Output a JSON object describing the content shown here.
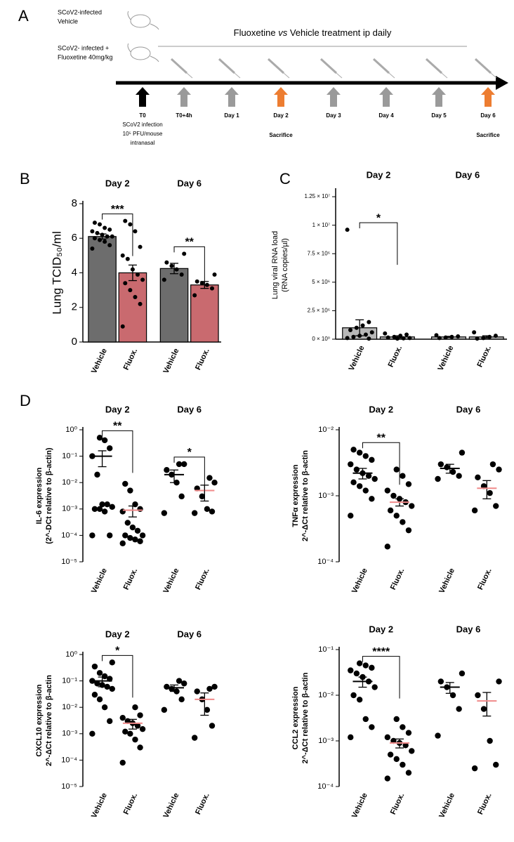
{
  "panel_a": {
    "panel": "A",
    "legend": [
      [
        "SCoV2-infected",
        "Vehicle"
      ],
      [
        "SCoV2- infected +",
        "Fluoxetine 40mg/kg"
      ]
    ],
    "banner": [
      "Fluoxetine ",
      "vs",
      " Vehicle treatment ip daily"
    ],
    "timepoints": [
      {
        "label": "T0",
        "color": "#000000"
      },
      {
        "label": "T0+4h",
        "color": "#9a9a9a"
      },
      {
        "label": "Day 1",
        "color": "#9a9a9a"
      },
      {
        "label": "Day 2",
        "color": "#ed7d31",
        "note": "Sacrifice"
      },
      {
        "label": "Day 3",
        "color": "#9a9a9a"
      },
      {
        "label": "Day 4",
        "color": "#9a9a9a"
      },
      {
        "label": "Day 5",
        "color": "#9a9a9a"
      },
      {
        "label": "Day 6",
        "color": "#ed7d31",
        "note": "Sacrifice"
      }
    ],
    "t0_notes": [
      "SCoV2 infection",
      "10⁵ PFU/mouse",
      "intranasal"
    ]
  },
  "chart_data": [
    {
      "type": "bar",
      "panel": "B",
      "ylabel": [
        "Lung TCID₅₀/ml"
      ],
      "groups": [
        "Day 2",
        "Day 6"
      ],
      "categories": [
        "Vehicle",
        "Fluox.",
        "Vehicle",
        "Fluox."
      ],
      "colors": [
        "#6d6d6d",
        "#c96a6f",
        "#6d6d6d",
        "#c96a6f"
      ],
      "means": [
        6.1,
        4.0,
        4.25,
        3.3
      ],
      "errors": [
        0.15,
        0.45,
        0.3,
        0.2
      ],
      "points": [
        [
          5.4,
          5.6,
          5.8,
          5.9,
          6.0,
          6.1,
          6.1,
          6.2,
          6.3,
          6.4,
          6.5,
          6.6,
          6.8,
          6.9
        ],
        [
          0.9,
          2.2,
          2.6,
          3.0,
          3.4,
          3.6,
          3.9,
          4.2,
          4.8,
          5.0,
          5.5,
          6.4,
          6.8,
          7.0
        ],
        [
          3.6,
          3.9,
          4.2,
          4.4,
          4.6,
          5.1
        ],
        [
          2.7,
          3.1,
          3.3,
          3.4,
          3.5,
          3.9
        ]
      ],
      "significance": [
        "***",
        "**"
      ],
      "log": false,
      "x_axis": true,
      "ylim": [
        0,
        8
      ],
      "yticks": [
        0,
        2,
        4,
        6,
        8
      ]
    },
    {
      "type": "bar",
      "panel": "C",
      "ylabel": [
        "Lung viral RNA load",
        "(RNA copies/µl)"
      ],
      "groups": [
        "Day 2",
        "Day 6"
      ],
      "categories": [
        "Vehicle",
        "Fluox.",
        "Vehicle",
        "Fluox."
      ],
      "colors": [
        "#b8b8b8",
        "#b8b8b8",
        "#b8b8b8",
        "#b8b8b8"
      ],
      "means": [
        1000000,
        200000,
        200000,
        200000
      ],
      "errors": [
        700000,
        100000,
        50000,
        100000
      ],
      "points": [
        [
          9600000,
          1500000,
          1200000,
          1000000,
          800000,
          600000,
          400000,
          300000,
          200000,
          100000,
          50000
        ],
        [
          500000,
          400000,
          300000,
          200000,
          150000,
          100000,
          80000,
          50000
        ],
        [
          350000,
          250000,
          200000,
          150000,
          100000
        ],
        [
          600000,
          300000,
          200000,
          100000,
          50000
        ]
      ],
      "significance": [
        "*",
        null
      ],
      "log": false,
      "x_axis": true,
      "ylim": [
        0,
        13000000
      ],
      "yticks": [
        {
          "value": 0,
          "label": "0 × 10⁰"
        },
        {
          "value": 2500000,
          "label": "2.5 × 10⁶"
        },
        {
          "value": 5000000,
          "label": "5 × 10⁶"
        },
        {
          "value": 7500000,
          "label": "7.5 × 10⁶"
        },
        {
          "value": 10000000,
          "label": "1 × 10⁷"
        },
        {
          "value": 12500000,
          "label": "1.25 × 10⁷"
        }
      ]
    },
    {
      "type": "dot",
      "panel": "D",
      "ylabel": [
        "IL-6 expression",
        "(2^-DCt relative to β-actin)"
      ],
      "groups": [
        "Day 2",
        "Day 6"
      ],
      "categories": [
        "Vehicle",
        "Fluox.",
        "Vehicle",
        "Fluox."
      ],
      "mean_colors": [
        "#000000",
        "#f08a8a",
        "#000000",
        "#f08a8a"
      ],
      "means": [
        0.1,
        0.0009,
        0.02,
        0.005
      ],
      "errors": [
        0.06,
        0.0004,
        0.01,
        0.003
      ],
      "points": [
        [
          0.0001,
          0.0001,
          0.0008,
          0.001,
          0.001,
          0.0012,
          0.0015,
          0.0015,
          0.02,
          0.1,
          0.2,
          0.4,
          0.5
        ],
        [
          5e-05,
          6e-05,
          7e-05,
          8e-05,
          0.0001,
          0.0001,
          0.00015,
          0.0002,
          0.0003,
          0.0008,
          0.001,
          0.0015,
          0.005,
          0.009
        ],
        [
          0.0007,
          0.003,
          0.01,
          0.02,
          0.03,
          0.05,
          0.05
        ],
        [
          0.0007,
          0.0008,
          0.001,
          0.003,
          0.006,
          0.01,
          0.015
        ]
      ],
      "significance": [
        "**",
        "*"
      ],
      "log": true,
      "x_axis": false,
      "ylim": [
        1e-05,
        1
      ],
      "yticks": [
        {
          "value": 1e-05,
          "label": "10⁻⁵"
        },
        {
          "value": 0.0001,
          "label": "10⁻⁴"
        },
        {
          "value": 0.001,
          "label": "10⁻³"
        },
        {
          "value": 0.01,
          "label": "10⁻²"
        },
        {
          "value": 0.1,
          "label": "10⁻¹"
        },
        {
          "value": 1,
          "label": "10⁰"
        }
      ]
    },
    {
      "type": "dot",
      "ylabel": [
        "TNFα expression",
        "2^-ΔCt relative to β-actin"
      ],
      "groups": [
        "Day 2",
        "Day 6"
      ],
      "categories": [
        "Vehicle",
        "Fluox.",
        "Vehicle",
        "Fluox."
      ],
      "mean_colors": [
        "#000000",
        "#f08a8a",
        "#000000",
        "#f08a8a"
      ],
      "means": [
        0.0022,
        0.0008,
        0.0026,
        0.0013
      ],
      "errors": [
        0.0004,
        0.0001,
        0.0004,
        0.0004
      ],
      "points": [
        [
          0.0005,
          0.0009,
          0.0012,
          0.0014,
          0.0016,
          0.0018,
          0.002,
          0.0022,
          0.0025,
          0.003,
          0.0035,
          0.004,
          0.0045,
          0.005
        ],
        [
          0.00017,
          0.0003,
          0.0004,
          0.0005,
          0.0006,
          0.0007,
          0.0008,
          0.0009,
          0.001,
          0.0012,
          0.0015,
          0.002,
          0.0025
        ],
        [
          0.0018,
          0.002,
          0.0023,
          0.0027,
          0.003,
          0.0045
        ],
        [
          0.0006,
          0.0007,
          0.0011,
          0.0014,
          0.0019,
          0.0025,
          0.003
        ]
      ],
      "significance": [
        "**",
        null
      ],
      "log": true,
      "x_axis": false,
      "ylim": [
        0.0001,
        0.01
      ],
      "yticks": [
        {
          "value": 0.0001,
          "label": "10⁻⁴"
        },
        {
          "value": 0.001,
          "label": "10⁻³"
        },
        {
          "value": 0.01,
          "label": "10⁻²"
        }
      ]
    },
    {
      "type": "dot",
      "ylabel": [
        "CXCL10 expression",
        "2^-ΔCt relative to β-actin"
      ],
      "groups": [
        "Day 2",
        "Day 6"
      ],
      "categories": [
        "Vehicle",
        "Fluox.",
        "Vehicle",
        "Fluox."
      ],
      "mean_colors": [
        "#000000",
        "#f08a8a",
        "#000000",
        "#f08a8a"
      ],
      "means": [
        0.1,
        0.0025,
        0.055,
        0.02
      ],
      "errors": [
        0.04,
        0.001,
        0.015,
        0.015
      ],
      "points": [
        [
          0.001,
          0.003,
          0.01,
          0.02,
          0.03,
          0.05,
          0.06,
          0.07,
          0.08,
          0.1,
          0.12,
          0.15,
          0.2,
          0.35,
          0.5
        ],
        [
          8e-05,
          0.0003,
          0.0006,
          0.001,
          0.0012,
          0.0015,
          0.002,
          0.0025,
          0.003,
          0.004,
          0.005,
          0.01
        ],
        [
          0.008,
          0.02,
          0.04,
          0.05,
          0.06,
          0.08,
          0.1
        ],
        [
          0.0007,
          0.002,
          0.008,
          0.02,
          0.04,
          0.06,
          0.05
        ]
      ],
      "significance": [
        "*",
        null
      ],
      "log": true,
      "x_axis": false,
      "ylim": [
        1e-05,
        1
      ],
      "yticks": [
        {
          "value": 1e-05,
          "label": "10⁻⁵"
        },
        {
          "value": 0.0001,
          "label": "10⁻⁴"
        },
        {
          "value": 0.001,
          "label": "10⁻³"
        },
        {
          "value": 0.01,
          "label": "10⁻²"
        },
        {
          "value": 0.1,
          "label": "10⁻¹"
        },
        {
          "value": 1,
          "label": "10⁰"
        }
      ]
    },
    {
      "type": "dot",
      "ylabel": [
        "CCL2 expression",
        "2^-ΔCt relative to β-actin"
      ],
      "groups": [
        "Day 2",
        "Day 6"
      ],
      "categories": [
        "Vehicle",
        "Fluox.",
        "Vehicle",
        "Fluox."
      ],
      "mean_colors": [
        "#000000",
        "#f08a8a",
        "#000000",
        "#f08a8a"
      ],
      "means": [
        0.02,
        0.0009,
        0.015,
        0.0075
      ],
      "errors": [
        0.005,
        0.0002,
        0.004,
        0.004
      ],
      "points": [
        [
          0.0012,
          0.002,
          0.003,
          0.008,
          0.01,
          0.015,
          0.02,
          0.025,
          0.03,
          0.035,
          0.04,
          0.045,
          0.05
        ],
        [
          0.00015,
          0.0002,
          0.0003,
          0.0004,
          0.0005,
          0.0006,
          0.0008,
          0.0009,
          0.001,
          0.0012,
          0.0015,
          0.002,
          0.003
        ],
        [
          0.0013,
          0.005,
          0.01,
          0.015,
          0.02,
          0.03
        ],
        [
          0.00025,
          0.0003,
          0.001,
          0.005,
          0.01,
          0.02
        ]
      ],
      "significance": [
        "****",
        null
      ],
      "log": true,
      "x_axis": false,
      "ylim": [
        0.0001,
        0.1
      ],
      "yticks": [
        {
          "value": 0.0001,
          "label": "10⁻⁴"
        },
        {
          "value": 0.001,
          "label": "10⁻³"
        },
        {
          "value": 0.01,
          "label": "10⁻²"
        },
        {
          "value": 0.1,
          "label": "10⁻¹"
        }
      ]
    }
  ]
}
